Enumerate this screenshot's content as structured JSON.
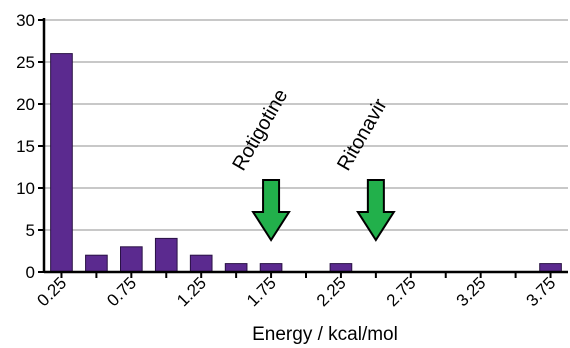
{
  "chart_data": {
    "type": "bar",
    "x": [
      0.25,
      0.5,
      0.75,
      1.0,
      1.25,
      1.5,
      1.75,
      2.0,
      2.25,
      2.5,
      2.75,
      3.0,
      3.25,
      3.5,
      3.75
    ],
    "values": [
      26,
      2,
      3,
      4,
      2,
      1,
      1,
      0,
      1,
      0,
      0,
      0,
      0,
      0,
      1
    ],
    "x_tick_labels": [
      "0.25",
      "0.75",
      "1.25",
      "1.75",
      "2.25",
      "2.75",
      "3.25",
      "3.75"
    ],
    "x_tick_values": [
      0.25,
      0.75,
      1.25,
      1.75,
      2.25,
      2.75,
      3.25,
      3.75
    ],
    "y_ticks": [
      "0",
      "5",
      "10",
      "15",
      "20",
      "25",
      "30"
    ],
    "xlabel": "Energy / kcal/mol",
    "ylabel": "",
    "xlim": [
      0.25,
      3.75
    ],
    "ylim": [
      0,
      30
    ],
    "grid": "horizontal",
    "bar_color": "#5b2a8f",
    "annotations": [
      {
        "label": "Rotigotine",
        "x": 1.75,
        "arrow_color": "#22b04b"
      },
      {
        "label": "Ritonavir",
        "x": 2.5,
        "arrow_color": "#22b04b"
      }
    ]
  }
}
